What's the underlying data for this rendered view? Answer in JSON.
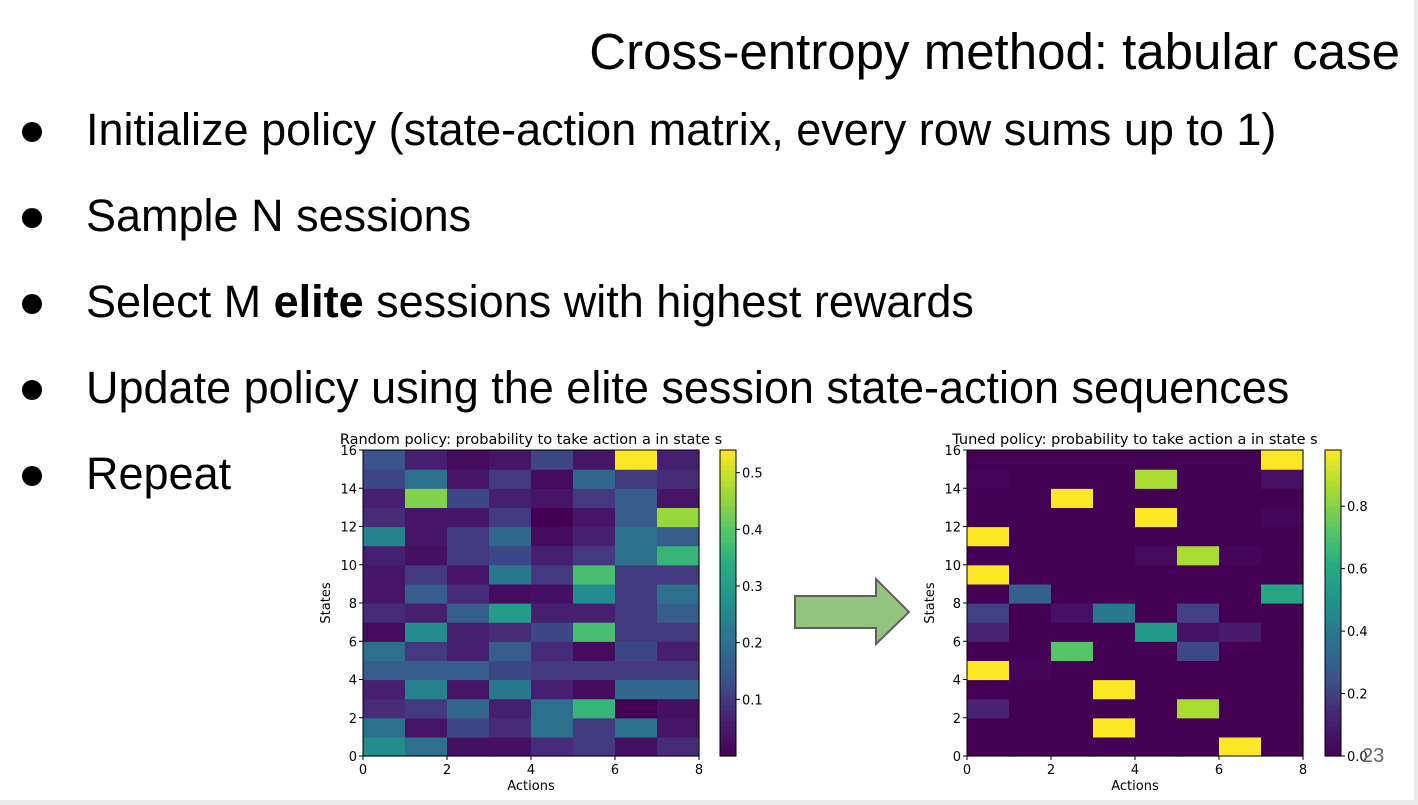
{
  "slide": {
    "title": "Cross-entropy method: tabular case",
    "bullets": [
      {
        "before": "Initialize policy (state-action matrix, every row sums up to 1)",
        "bold": "",
        "after": ""
      },
      {
        "before": "Sample N sessions",
        "bold": "",
        "after": ""
      },
      {
        "before": "Select M ",
        "bold": "elite",
        "after": " sessions with highest rewards"
      },
      {
        "before": "Update policy using the elite session state-action sequences",
        "bold": "",
        "after": ""
      },
      {
        "before": "Repeat",
        "bold": "",
        "after": ""
      }
    ],
    "page_number": "23",
    "arrow_fill": "#93c47d",
    "arrow_stroke": "#5f5f5f"
  },
  "chart_data": [
    {
      "type": "heatmap",
      "title": "Random policy: probability to take action a in state s",
      "xlabel": "Actions",
      "ylabel": "States",
      "xlim": [
        0,
        8
      ],
      "ylim": [
        0,
        16
      ],
      "xticks": [
        0,
        2,
        4,
        6,
        8
      ],
      "yticks": [
        0,
        2,
        4,
        6,
        8,
        10,
        12,
        14,
        16
      ],
      "colormap": "viridis",
      "vmin": 0.0,
      "vmax": 0.54,
      "colorbar_ticks": [
        0.1,
        0.2,
        0.3,
        0.4,
        0.5
      ],
      "colorbar_labels": [
        "0.1",
        "0.2",
        "0.3",
        "0.4",
        "0.5"
      ],
      "values": [
        [
          0.26,
          0.2,
          0.03,
          0.03,
          0.08,
          0.1,
          0.03,
          0.08
        ],
        [
          0.2,
          0.04,
          0.12,
          0.08,
          0.2,
          0.1,
          0.2,
          0.04
        ],
        [
          0.08,
          0.1,
          0.18,
          0.06,
          0.2,
          0.36,
          0.0,
          0.03
        ],
        [
          0.06,
          0.24,
          0.04,
          0.22,
          0.06,
          0.02,
          0.18,
          0.18
        ],
        [
          0.16,
          0.16,
          0.16,
          0.12,
          0.1,
          0.1,
          0.1,
          0.1
        ],
        [
          0.2,
          0.1,
          0.06,
          0.16,
          0.08,
          0.02,
          0.12,
          0.06
        ],
        [
          0.02,
          0.26,
          0.06,
          0.08,
          0.12,
          0.38,
          0.1,
          0.1
        ],
        [
          0.08,
          0.06,
          0.16,
          0.3,
          0.06,
          0.06,
          0.1,
          0.16
        ],
        [
          0.04,
          0.16,
          0.08,
          0.02,
          0.03,
          0.26,
          0.1,
          0.2
        ],
        [
          0.04,
          0.1,
          0.04,
          0.22,
          0.1,
          0.38,
          0.1,
          0.1
        ],
        [
          0.06,
          0.03,
          0.1,
          0.12,
          0.06,
          0.1,
          0.2,
          0.36
        ],
        [
          0.24,
          0.04,
          0.1,
          0.18,
          0.02,
          0.06,
          0.2,
          0.16
        ],
        [
          0.08,
          0.04,
          0.04,
          0.1,
          0.0,
          0.04,
          0.16,
          0.46
        ],
        [
          0.06,
          0.44,
          0.12,
          0.06,
          0.04,
          0.1,
          0.16,
          0.04
        ],
        [
          0.12,
          0.2,
          0.04,
          0.1,
          0.02,
          0.18,
          0.1,
          0.08
        ],
        [
          0.14,
          0.06,
          0.02,
          0.04,
          0.12,
          0.04,
          0.54,
          0.06
        ]
      ]
    },
    {
      "type": "heatmap",
      "title": "Tuned policy: probability to take action a in state s",
      "xlabel": "Actions",
      "ylabel": "States",
      "xlim": [
        0,
        8
      ],
      "ylim": [
        0,
        16
      ],
      "xticks": [
        0,
        2,
        4,
        6,
        8
      ],
      "yticks": [
        0,
        2,
        4,
        6,
        8,
        10,
        12,
        14,
        16
      ],
      "colormap": "viridis",
      "vmin": 0.0,
      "vmax": 0.98,
      "colorbar_ticks": [
        0.0,
        0.2,
        0.4,
        0.6,
        0.8
      ],
      "colorbar_labels": [
        "0.0",
        "0.2",
        "0.4",
        "0.6",
        "0.8"
      ],
      "values": [
        [
          0.0,
          0.0,
          0.0,
          0.0,
          0.0,
          0.0,
          0.98,
          0.0
        ],
        [
          0.0,
          0.0,
          0.0,
          0.98,
          0.0,
          0.0,
          0.0,
          0.0
        ],
        [
          0.12,
          0.0,
          0.0,
          0.0,
          0.0,
          0.86,
          0.0,
          0.0
        ],
        [
          0.0,
          0.0,
          0.0,
          0.98,
          0.0,
          0.0,
          0.0,
          0.0
        ],
        [
          0.98,
          0.02,
          0.0,
          0.0,
          0.0,
          0.0,
          0.0,
          0.0
        ],
        [
          0.0,
          0.0,
          0.72,
          0.0,
          0.0,
          0.22,
          0.0,
          0.0
        ],
        [
          0.12,
          0.0,
          0.0,
          0.0,
          0.52,
          0.06,
          0.1,
          0.0
        ],
        [
          0.2,
          0.0,
          0.06,
          0.4,
          0.0,
          0.2,
          0.0,
          0.0
        ],
        [
          0.0,
          0.3,
          0.0,
          0.0,
          0.0,
          0.0,
          0.0,
          0.58
        ],
        [
          0.98,
          0.0,
          0.0,
          0.0,
          0.0,
          0.0,
          0.0,
          0.0
        ],
        [
          0.0,
          0.0,
          0.0,
          0.0,
          0.04,
          0.86,
          0.02,
          0.0
        ],
        [
          0.98,
          0.0,
          0.0,
          0.0,
          0.0,
          0.0,
          0.0,
          0.0
        ],
        [
          0.0,
          0.0,
          0.0,
          0.0,
          0.98,
          0.0,
          0.0,
          0.02
        ],
        [
          0.0,
          0.0,
          0.98,
          0.0,
          0.0,
          0.0,
          0.0,
          0.0
        ],
        [
          0.02,
          0.0,
          0.0,
          0.0,
          0.86,
          0.0,
          0.0,
          0.06
        ],
        [
          0.0,
          0.0,
          0.0,
          0.0,
          0.0,
          0.0,
          0.0,
          0.98
        ]
      ]
    }
  ]
}
